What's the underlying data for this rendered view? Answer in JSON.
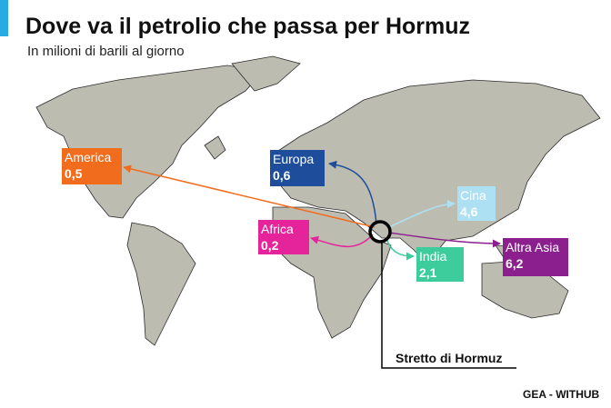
{
  "title": "Dove va il petrolio che passa per Hormuz",
  "subtitle": "In milioni di barili al giorno",
  "regions": [
    {
      "name": "America",
      "value": "0,5",
      "color": "#f26c1d"
    },
    {
      "name": "Europa",
      "value": "0,6",
      "color": "#1e4d9b"
    },
    {
      "name": "Cina",
      "value": "4,6",
      "color": "#aee0f4"
    },
    {
      "name": "Africa",
      "value": "0,2",
      "color": "#e5239b"
    },
    {
      "name": "India",
      "value": "2,1",
      "color": "#3dcc9c"
    },
    {
      "name": "Altra Asia",
      "value": "6,2",
      "color": "#8b1f8d"
    }
  ],
  "strait": "Stretto di Hormuz",
  "credit": "GEA - WITHUB"
}
